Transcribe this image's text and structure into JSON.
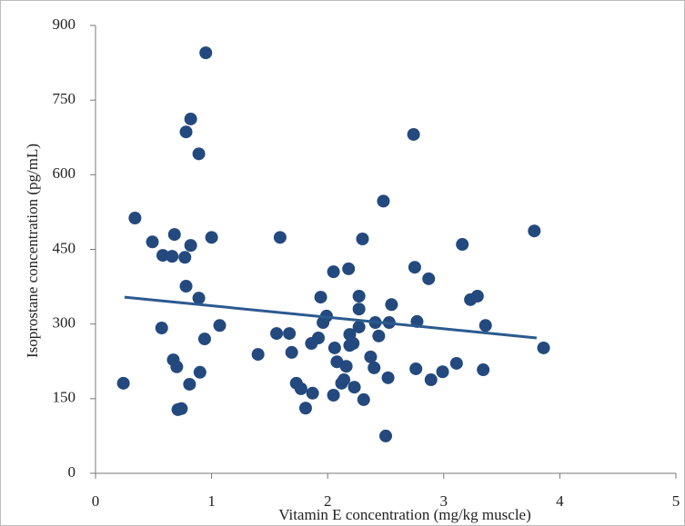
{
  "chart_data": {
    "type": "scatter",
    "x_label": "Vitamin E concentration (mg/kg muscle)",
    "y_label": "Isoprostane concentration (pg/mL)",
    "color": "#23497e",
    "x": [
      0.24,
      0.34,
      0.49,
      0.58,
      0.57,
      0.66,
      0.68,
      0.67,
      0.7,
      0.71,
      0.74,
      0.77,
      0.78,
      0.78,
      0.82,
      0.82,
      0.81,
      0.89,
      0.89,
      0.9,
      0.95,
      0.94,
      1.0,
      1.07,
      1.4,
      1.59,
      1.56,
      1.67,
      1.69,
      1.73,
      1.77,
      1.81,
      1.86,
      1.87,
      1.92,
      1.94,
      1.96,
      1.99,
      2.05,
      2.06,
      2.05,
      2.08,
      2.12,
      2.14,
      2.16,
      2.18,
      2.19,
      2.19,
      2.22,
      2.23,
      2.27,
      2.27,
      2.27,
      2.3,
      2.31,
      2.37,
      2.4,
      2.41,
      2.44,
      2.48,
      2.5,
      2.52,
      2.53,
      2.55,
      2.74,
      2.75,
      2.76,
      2.77,
      2.87,
      2.89,
      2.99,
      3.11,
      3.16,
      3.23,
      3.29,
      3.34,
      3.36,
      3.78,
      3.86
    ],
    "values": [
      181,
      513,
      465,
      438,
      292,
      436,
      480,
      228,
      214,
      128,
      130,
      434,
      376,
      686,
      712,
      458,
      179,
      642,
      352,
      203,
      845,
      270,
      474,
      297,
      239,
      474,
      281,
      281,
      243,
      181,
      170,
      131,
      261,
      161,
      272,
      354,
      303,
      316,
      405,
      252,
      157,
      224,
      181,
      188,
      215,
      411,
      279,
      257,
      261,
      173,
      330,
      356,
      294,
      471,
      148,
      234,
      212,
      303,
      276,
      547,
      75,
      192,
      303,
      339,
      681,
      414,
      210,
      305,
      391,
      188,
      204,
      221,
      460,
      349,
      356,
      208,
      297,
      487,
      252
    ],
    "trendline": {
      "x": [
        0.25,
        3.8
      ],
      "values": [
        354,
        272
      ],
      "color": "#2b5a8e"
    },
    "xlim": [
      0,
      5
    ],
    "xticks": [
      0,
      1,
      2,
      3,
      4,
      5
    ],
    "ylim": [
      0,
      900
    ],
    "yticks": [
      0,
      150,
      300,
      450,
      600,
      750,
      900
    ]
  }
}
